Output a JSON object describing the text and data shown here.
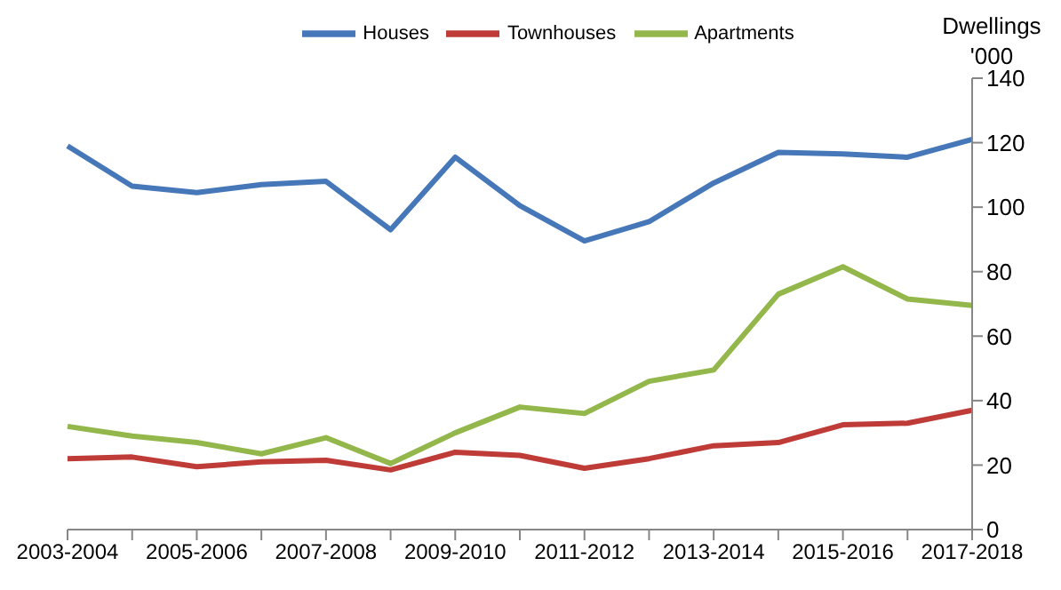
{
  "chart_data": {
    "type": "line",
    "ylabel": "Dwellings '000",
    "categories": [
      "2003-2004",
      null,
      "2005-2006",
      null,
      "2007-2008",
      null,
      "2009-2010",
      null,
      "2011-2012",
      null,
      "2013-2014",
      null,
      "2015-2016",
      null,
      "2017-2018"
    ],
    "series": [
      {
        "name": "Houses",
        "color": "#4677b8",
        "values": [
          119,
          106.5,
          104.5,
          107,
          108,
          93,
          115.5,
          100.5,
          89.5,
          95.5,
          107.5,
          117,
          116.5,
          115.5,
          121
        ]
      },
      {
        "name": "Townhouses",
        "color": "#be3b37",
        "values": [
          22,
          22.5,
          19.5,
          21,
          21.5,
          18.5,
          24,
          23,
          19,
          22,
          26,
          27,
          32.5,
          33,
          37
        ]
      },
      {
        "name": "Apartments",
        "color": "#93b74b",
        "values": [
          32,
          29,
          27,
          23.5,
          28.5,
          20.5,
          30,
          38,
          36,
          46,
          49.5,
          73,
          81.5,
          71.5,
          69.5
        ]
      }
    ],
    "ylim": [
      0,
      140
    ],
    "yticks": [
      0,
      20,
      40,
      60,
      80,
      100,
      120,
      140
    ],
    "grid": false,
    "legend": "top",
    "marker": "none",
    "line_style": "solid"
  }
}
